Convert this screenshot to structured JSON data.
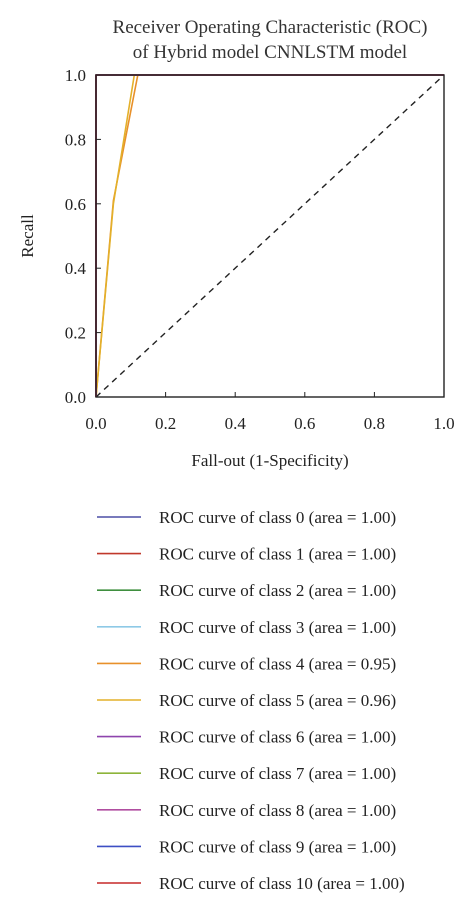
{
  "chart_data": {
    "type": "line",
    "title": [
      "Receiver Operating Characteristic (ROC)",
      "of Hybrid model CNNLSTM model"
    ],
    "xlabel": "Fall-out (1-Specificity)",
    "ylabel": "Recall",
    "xlim": [
      0.0,
      1.0
    ],
    "ylim": [
      0.0,
      1.0
    ],
    "xticks": [
      "0.0",
      "0.2",
      "0.4",
      "0.6",
      "0.8",
      "1.0"
    ],
    "yticks": [
      "0.0",
      "0.2",
      "0.4",
      "0.6",
      "0.8",
      "1.0"
    ],
    "grid": false,
    "legend_position": "below",
    "diagonal": {
      "x": [
        0,
        1
      ],
      "y": [
        0,
        1
      ],
      "style": "dashed",
      "color": "#222222"
    },
    "series": [
      {
        "name": "ROC curve of class 0 (area = 1.00)",
        "color": "#4b4fa6",
        "x": [
          0,
          0,
          1
        ],
        "y": [
          0,
          1,
          1
        ]
      },
      {
        "name": "ROC curve of class 1 (area = 1.00)",
        "color": "#c0392b",
        "x": [
          0,
          0,
          1
        ],
        "y": [
          0,
          1,
          1
        ]
      },
      {
        "name": "ROC curve of class 2 (area = 1.00)",
        "color": "#3f8f3f",
        "x": [
          0,
          0,
          1
        ],
        "y": [
          0,
          1,
          1
        ]
      },
      {
        "name": "ROC curve of class 3 (area = 1.00)",
        "color": "#8ec9e6",
        "x": [
          0,
          0,
          1
        ],
        "y": [
          0,
          1,
          1
        ]
      },
      {
        "name": "ROC curve of class 4 (area = 0.95)",
        "color": "#e8902a",
        "x": [
          0,
          0.05,
          0.12,
          1
        ],
        "y": [
          0,
          0.61,
          1,
          1
        ]
      },
      {
        "name": "ROC curve of class 5 (area = 0.96)",
        "color": "#e3b02a",
        "x": [
          0,
          0.05,
          0.11,
          1
        ],
        "y": [
          0,
          0.6,
          1,
          1
        ]
      },
      {
        "name": "ROC curve of class 6 (area = 1.00)",
        "color": "#8e44ad",
        "x": [
          0,
          0,
          1
        ],
        "y": [
          0,
          1,
          1
        ]
      },
      {
        "name": "ROC curve of class 7 (area = 1.00)",
        "color": "#8db43a",
        "x": [
          0,
          0,
          1
        ],
        "y": [
          0,
          1,
          1
        ]
      },
      {
        "name": "ROC curve of class 8 (area = 1.00)",
        "color": "#b04ea0",
        "x": [
          0,
          0,
          1
        ],
        "y": [
          0,
          1,
          1
        ]
      },
      {
        "name": "ROC curve of class 9 (area = 1.00)",
        "color": "#3d4fc4",
        "x": [
          0,
          0,
          1
        ],
        "y": [
          0,
          1,
          1
        ]
      },
      {
        "name": "ROC curve of class 10 (area = 1.00)",
        "color": "#c62828",
        "x": [
          0,
          0,
          1
        ],
        "y": [
          0,
          1,
          1
        ]
      }
    ]
  }
}
